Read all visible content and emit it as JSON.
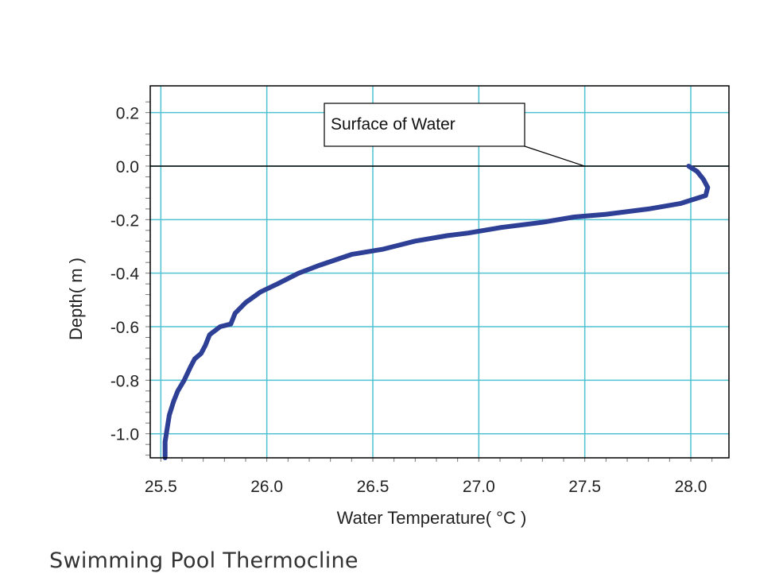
{
  "caption": "Swimming Pool Thermocline",
  "chart_data": {
    "type": "line",
    "title": "",
    "xlabel": "Water Temperature( °C )",
    "ylabel": "Depth( m )",
    "xlim": [
      25.45,
      28.18
    ],
    "ylim": [
      -1.09,
      0.3
    ],
    "xticks": [
      25.5,
      26.0,
      26.5,
      27.0,
      27.5,
      28.0
    ],
    "xtick_labels": [
      "25.5",
      "26.0",
      "26.5",
      "27.0",
      "27.5",
      "28.0"
    ],
    "yticks": [
      0.2,
      0.0,
      -0.2,
      -0.4,
      -0.6,
      -0.8,
      -1.0
    ],
    "ytick_labels": [
      "0.2",
      "0.0",
      "-0.2",
      "-0.4",
      "-0.6",
      "-0.8",
      "-1.0"
    ],
    "grid": true,
    "reference_line": {
      "y": 0.0
    },
    "annotation": {
      "text": "Surface of Water",
      "target": [
        27.5,
        0.0
      ]
    },
    "colors": {
      "series": "#2e3f96",
      "grid": "#4fc1d1",
      "axis": "#000000"
    },
    "series": [
      {
        "x": [
          27.99,
          28.03,
          28.06,
          28.08,
          28.07,
          28.03,
          27.95,
          27.8,
          27.6,
          27.45,
          27.3,
          27.1,
          26.95,
          26.85,
          26.7,
          26.55,
          26.4,
          26.25,
          26.15,
          26.05,
          25.97,
          25.9,
          25.85,
          25.83,
          25.78,
          25.73,
          25.71,
          25.69,
          25.66,
          25.64,
          25.61,
          25.58,
          25.56,
          25.54,
          25.53,
          25.52,
          25.52,
          25.52
        ],
        "y": [
          0.0,
          -0.02,
          -0.05,
          -0.08,
          -0.11,
          -0.12,
          -0.14,
          -0.16,
          -0.18,
          -0.19,
          -0.21,
          -0.23,
          -0.25,
          -0.26,
          -0.28,
          -0.31,
          -0.33,
          -0.37,
          -0.4,
          -0.44,
          -0.47,
          -0.51,
          -0.55,
          -0.59,
          -0.6,
          -0.63,
          -0.67,
          -0.7,
          -0.72,
          -0.75,
          -0.8,
          -0.84,
          -0.88,
          -0.93,
          -0.98,
          -1.03,
          -1.06,
          -1.09
        ]
      }
    ]
  }
}
